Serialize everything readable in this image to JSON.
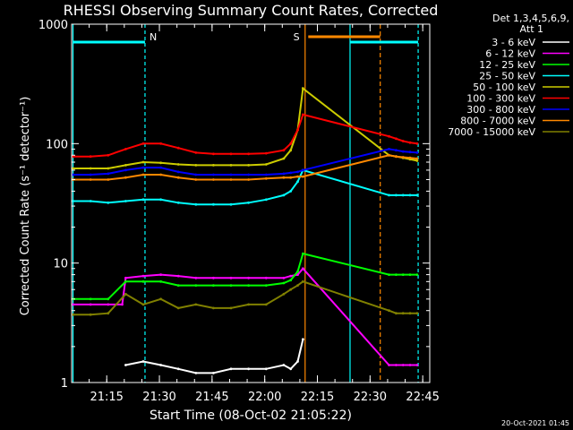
{
  "chart_data": {
    "type": "line",
    "title": "RHESSI Observing Summary Count Rates, Corrected",
    "xlabel": "Start Time (08-Oct-02 21:05:22)",
    "ylabel": "Corrected Count Rate (s⁻¹ detector⁻¹)",
    "yscale": "log",
    "ylim": [
      1,
      1000
    ],
    "xlim_minutes": [
      -0.4,
      101.6
    ],
    "y_ticks": [
      {
        "value": 1,
        "label": "1"
      },
      {
        "value": 10,
        "label": "10"
      },
      {
        "value": 100,
        "label": "100"
      },
      {
        "value": 1000,
        "label": "1000"
      }
    ],
    "x_ticks": [
      {
        "minute": 9.6,
        "label": "21:15"
      },
      {
        "minute": 24.6,
        "label": "21:30"
      },
      {
        "minute": 39.6,
        "label": "21:45"
      },
      {
        "minute": 54.6,
        "label": "22:00"
      },
      {
        "minute": 69.6,
        "label": "22:15"
      },
      {
        "minute": 84.6,
        "label": "22:30"
      },
      {
        "minute": 99.6,
        "label": "22:45"
      }
    ],
    "legend_header": [
      "Det 1,3,4,5,6,9,",
      "Att 1"
    ],
    "legend_position": "right",
    "series": [
      {
        "name": "3 - 6 keV",
        "color": "#000000",
        "x": [
          0,
          5,
          10,
          15,
          20,
          25,
          30,
          35,
          40,
          45,
          50,
          55,
          60,
          62,
          64,
          65.5,
          90,
          92,
          94,
          96,
          98
        ],
        "y": [
          null,
          null,
          null,
          1.4,
          1.5,
          1.4,
          1.3,
          1.2,
          1.2,
          1.3,
          1.3,
          1.3,
          1.4,
          1.3,
          1.5,
          2.3,
          null,
          null,
          null,
          null,
          null
        ]
      },
      {
        "name": "6 - 12 keV",
        "color": "#ff00ff",
        "x": [
          0,
          5,
          10,
          14,
          15,
          20,
          25,
          30,
          35,
          40,
          45,
          50,
          55,
          60,
          62,
          64,
          65.5,
          90,
          92,
          94,
          96,
          98
        ],
        "y": [
          4.5,
          4.5,
          4.5,
          4.5,
          7.5,
          7.8,
          8,
          7.8,
          7.5,
          7.5,
          7.5,
          7.5,
          7.5,
          7.5,
          7.8,
          8,
          9,
          1.4,
          1.4,
          1.4,
          1.4,
          1.4
        ]
      },
      {
        "name": "12 - 25 keV",
        "color": "#00ff00",
        "x": [
          0,
          5,
          10,
          15,
          20,
          25,
          30,
          35,
          40,
          45,
          50,
          55,
          60,
          62,
          64,
          65.5,
          90,
          92,
          94,
          96,
          98
        ],
        "y": [
          5,
          5,
          5,
          7,
          7,
          7,
          6.5,
          6.5,
          6.5,
          6.5,
          6.5,
          6.5,
          6.8,
          7.2,
          8.5,
          12,
          8,
          8,
          8,
          8,
          8
        ]
      },
      {
        "name": "25 - 50 keV",
        "color": "#00ffff",
        "x": [
          0,
          5,
          10,
          15,
          20,
          25,
          30,
          35,
          40,
          45,
          50,
          55,
          60,
          62,
          64,
          65.5,
          90,
          92,
          94,
          96,
          98
        ],
        "y": [
          33,
          33,
          32,
          33,
          34,
          34,
          32,
          31,
          31,
          31,
          32,
          34,
          37,
          40,
          48,
          60,
          37,
          37,
          37,
          37,
          37
        ]
      },
      {
        "name": "50 - 100 keV",
        "color": "#cccc00",
        "x": [
          0,
          5,
          10,
          15,
          20,
          25,
          30,
          35,
          40,
          45,
          50,
          55,
          60,
          62,
          64,
          65.5,
          90,
          92,
          94,
          96,
          98
        ],
        "y": [
          62,
          62,
          62,
          66,
          70,
          69,
          67,
          66,
          66,
          66,
          66,
          67,
          75,
          88,
          130,
          290,
          80,
          78,
          76,
          74,
          72
        ]
      },
      {
        "name": "100 - 300 keV",
        "color": "#ff0000",
        "x": [
          0,
          5,
          10,
          15,
          20,
          25,
          30,
          35,
          40,
          45,
          50,
          55,
          60,
          62,
          64,
          65.5,
          90,
          92,
          94,
          96,
          98
        ],
        "y": [
          78,
          78,
          80,
          90,
          100,
          100,
          92,
          84,
          82,
          82,
          82,
          83,
          88,
          100,
          130,
          175,
          115,
          110,
          105,
          102,
          100
        ]
      },
      {
        "name": "300 - 800 keV",
        "color": "#0000ff",
        "x": [
          0,
          5,
          10,
          15,
          20,
          25,
          30,
          35,
          40,
          45,
          50,
          55,
          60,
          62,
          64,
          65.5,
          90,
          92,
          94,
          96,
          98
        ],
        "y": [
          55,
          55,
          56,
          60,
          63,
          63,
          58,
          55,
          55,
          55,
          55,
          55,
          56,
          57,
          58,
          60,
          90,
          88,
          86,
          85,
          84
        ]
      },
      {
        "name": "800 - 7000 keV",
        "color": "#ff8800",
        "x": [
          0,
          5,
          10,
          15,
          20,
          25,
          30,
          35,
          40,
          45,
          50,
          55,
          60,
          62,
          64,
          65.5,
          90,
          92,
          94,
          96,
          98
        ],
        "y": [
          50,
          50,
          50,
          52,
          55,
          55,
          52,
          50,
          50,
          50,
          50,
          51,
          52,
          52,
          53,
          53,
          80,
          78,
          77,
          76,
          75
        ]
      },
      {
        "name": "7000 - 15000 keV",
        "color": "#808000",
        "x": [
          0,
          5,
          10,
          15,
          20,
          25,
          30,
          35,
          40,
          45,
          50,
          55,
          60,
          62,
          64,
          65.5,
          90,
          92,
          94,
          96,
          98
        ],
        "y": [
          3.7,
          3.7,
          3.8,
          5.5,
          4.5,
          5,
          4.2,
          4.5,
          4.2,
          4.2,
          4.5,
          4.5,
          5.5,
          6,
          6.5,
          7,
          4,
          3.8,
          3.8,
          3.8,
          3.8
        ]
      }
    ],
    "annotations": [
      {
        "text": "N",
        "minute": 20.5,
        "color": "#00ffff"
      },
      {
        "text": "S",
        "minute": 65.8,
        "color": "#ff8800"
      }
    ],
    "footer": "20-Oct-2021 01:45"
  }
}
